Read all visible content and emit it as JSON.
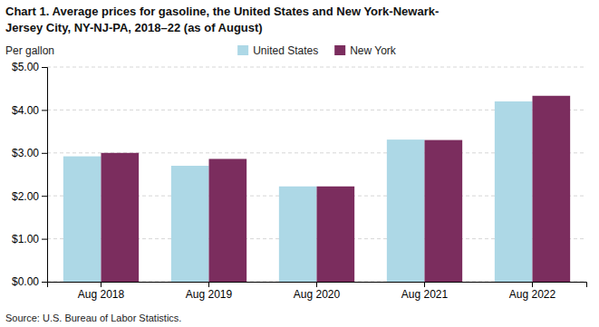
{
  "chart_data": {
    "type": "bar",
    "title": [
      "Chart 1. Average prices for gasoline, the United States and New York-Newark-",
      "Jersey City, NY-NJ-PA, 2018–22 (as of August)"
    ],
    "ylabel": "Per gallon",
    "source": "Source: U.S. Bureau of Labor Statistics.",
    "categories": [
      "Aug 2018",
      "Aug 2019",
      "Aug 2020",
      "Aug 2021",
      "Aug 2022"
    ],
    "series": [
      {
        "name": "United States",
        "color": "#ADD8E6",
        "values": [
          2.92,
          2.7,
          2.22,
          3.31,
          4.2
        ]
      },
      {
        "name": "New York",
        "color": "#7B2D5E",
        "values": [
          3.0,
          2.86,
          2.22,
          3.3,
          4.33
        ]
      }
    ],
    "ylim": [
      0,
      5.0
    ],
    "yticks": [
      {
        "value": 0.0,
        "label": "$0.00"
      },
      {
        "value": 1.0,
        "label": "$1.00"
      },
      {
        "value": 2.0,
        "label": "$2.00"
      },
      {
        "value": 3.0,
        "label": "$3.00"
      },
      {
        "value": 4.0,
        "label": "$4.00"
      },
      {
        "value": 5.0,
        "label": "$5.00"
      }
    ],
    "grid": true,
    "legend": "top"
  }
}
